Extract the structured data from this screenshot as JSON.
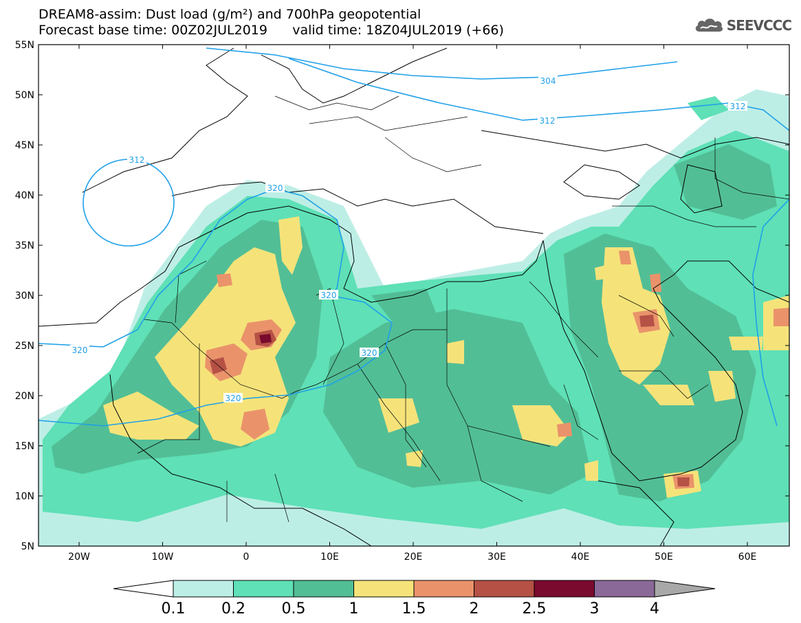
{
  "header": {
    "title_line1": "DREAM8-assim: Dust load (g/m²) and 700hPa geopotential",
    "title_line2_left": "Forecast base time: 00Z02JUL2019",
    "title_line2_right": "valid time: 18Z04JUL2019 (+66)",
    "logo_text": "SEEVCCC",
    "logo_icon": "cloud-icon"
  },
  "map": {
    "lat_labels": [
      "55N",
      "50N",
      "45N",
      "40N",
      "35N",
      "30N",
      "25N",
      "20N",
      "15N",
      "10N",
      "5N"
    ],
    "lon_labels": [
      "20W",
      "10W",
      "0",
      "10E",
      "20E",
      "30E",
      "40E",
      "50E",
      "60E"
    ],
    "contour_labels": [
      "304",
      "312",
      "312",
      "312",
      "320",
      "320",
      "320",
      "320",
      "320"
    ],
    "shading_colors": {
      "c01": "#bdeee6",
      "c02": "#5fe0b6",
      "c05": "#52be96",
      "c1": "#f5e37a",
      "c15": "#ea936b",
      "c2": "#b55145",
      "c25": "#7a0a2e",
      "c3": "#8a6898",
      "c4": "#a8a8a8"
    },
    "contour_color": "#1fa0e8"
  },
  "colorbar": {
    "labels": [
      "0.1",
      "0.2",
      "0.5",
      "1",
      "1.5",
      "2",
      "2.5",
      "3",
      "4"
    ],
    "colors": [
      "#ffffff",
      "#bdeee6",
      "#5fe0b6",
      "#52be96",
      "#f5e37a",
      "#ea936b",
      "#b55145",
      "#7a0a2e",
      "#8a6898",
      "#a8a8a8"
    ]
  }
}
